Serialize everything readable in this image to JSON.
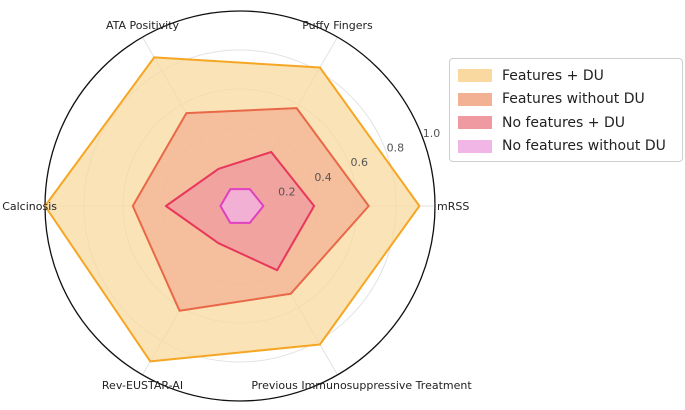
{
  "chart_data": {
    "type": "radar",
    "axes": [
      "mRSS",
      "Puffy Fingers",
      "ATA Positivity",
      "Calcinosis",
      "Rev-EUSTAR-AI",
      "Previous Immunosuppressive Treatment"
    ],
    "radial_ticks": [
      "0.2",
      "0.4",
      "0.6",
      "0.8",
      "1.0"
    ],
    "rlim": [
      0,
      1
    ],
    "grid": true,
    "legend_position": "right",
    "series": [
      {
        "name": "Features + DU",
        "color": "#f5a623",
        "fill": "#f9d9a0",
        "values": [
          0.92,
          0.82,
          0.88,
          1.0,
          0.92,
          0.82
        ]
      },
      {
        "name": "Features without DU",
        "color": "#e86848",
        "fill": "#f3b193",
        "values": [
          0.66,
          0.58,
          0.55,
          0.55,
          0.62,
          0.52
        ]
      },
      {
        "name": "No features + DU",
        "color": "#e8375a",
        "fill": "#ef9aa0",
        "values": [
          0.38,
          0.32,
          0.22,
          0.38,
          0.22,
          0.38
        ]
      },
      {
        "name": "No features without DU",
        "color": "#e040c0",
        "fill": "#f2b6e6",
        "values": [
          0.12,
          0.1,
          0.1,
          0.1,
          0.1,
          0.1
        ]
      }
    ]
  }
}
